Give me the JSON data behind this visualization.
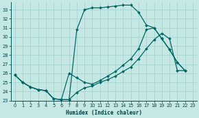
{
  "xlabel": "Humidex (Indice chaleur)",
  "background_color": "#c5e8e5",
  "grid_color": "#9fcfcc",
  "line_color": "#006666",
  "xlim": [
    -0.5,
    23.5
  ],
  "ylim": [
    23,
    33.8
  ],
  "yticks": [
    23,
    24,
    25,
    26,
    27,
    28,
    29,
    30,
    31,
    32,
    33
  ],
  "xticks": [
    0,
    1,
    2,
    3,
    4,
    5,
    6,
    7,
    8,
    9,
    10,
    11,
    12,
    13,
    14,
    15,
    16,
    17,
    18,
    19,
    20,
    21,
    22,
    23
  ],
  "line1_x": [
    0,
    1,
    2,
    3,
    4,
    5,
    6,
    7,
    8,
    9,
    10,
    11,
    12,
    13,
    14,
    15,
    16,
    17,
    18,
    19,
    20,
    21,
    22
  ],
  "line1_y": [
    25.8,
    25.0,
    24.5,
    24.2,
    24.1,
    23.2,
    23.1,
    23.1,
    30.8,
    33.0,
    33.2,
    33.2,
    33.3,
    33.4,
    33.5,
    33.5,
    32.7,
    31.3,
    31.0,
    29.8,
    28.6,
    27.2,
    26.3
  ],
  "line2_x": [
    0,
    1,
    2,
    3,
    4,
    5,
    6,
    7,
    8,
    9,
    10,
    11,
    12,
    13,
    14,
    15,
    16,
    17,
    18,
    19,
    20,
    21,
    22
  ],
  "line2_y": [
    25.8,
    25.0,
    24.5,
    24.2,
    24.1,
    23.2,
    23.1,
    26.0,
    25.5,
    25.0,
    24.8,
    25.2,
    25.7,
    26.2,
    26.9,
    27.6,
    28.7,
    30.8,
    31.0,
    29.8,
    28.6,
    27.2,
    26.3
  ],
  "line3_x": [
    0,
    1,
    2,
    3,
    4,
    5,
    6,
    7,
    8,
    9,
    10,
    11,
    12,
    13,
    14,
    15,
    16,
    17,
    18,
    19,
    20,
    21,
    22
  ],
  "line3_y": [
    25.8,
    25.0,
    24.5,
    24.2,
    24.1,
    23.2,
    23.1,
    23.1,
    23.9,
    24.4,
    24.6,
    25.0,
    25.3,
    25.7,
    26.2,
    26.7,
    27.6,
    28.7,
    29.7,
    30.4,
    29.8,
    26.3,
    26.3
  ],
  "xlabel_fontsize": 5.5,
  "tick_fontsize": 4.8,
  "marker_size": 2.0,
  "linewidth": 0.9
}
